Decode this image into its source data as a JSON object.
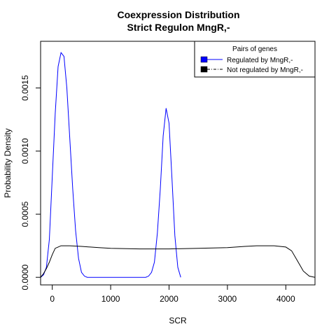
{
  "chart_data": {
    "type": "line",
    "title": "Coexpression Distribution",
    "subtitle": "Strict Regulon MngR,-",
    "xlabel": "SCR",
    "ylabel": "Probability Density",
    "xlim": [
      -200,
      4500
    ],
    "ylim": [
      -6e-05,
      0.00187
    ],
    "x_ticks": [
      0,
      1000,
      2000,
      3000,
      4000
    ],
    "x_tick_labels": [
      "0",
      "1000",
      "2000",
      "3000",
      "4000"
    ],
    "y_ticks": [
      0.0,
      0.0005,
      0.001,
      0.0015
    ],
    "y_tick_labels": [
      "0.0000",
      "0.0005",
      "0.0010",
      "0.0015"
    ],
    "grid": false,
    "legend": {
      "title": "Pairs of genes",
      "position": "top-right",
      "entries": [
        {
          "label": "Regulated by  MngR,-",
          "color": "#0000ff",
          "line": "solid"
        },
        {
          "label": "Not regulated by  MngR,-",
          "color": "#000000",
          "line": "dashed"
        }
      ]
    },
    "series": [
      {
        "name": "Regulated by  MngR,-",
        "color": "#0000ff",
        "x": [
          -200,
          -150,
          -100,
          -50,
          0,
          50,
          100,
          150,
          200,
          250,
          300,
          350,
          400,
          450,
          500,
          550,
          600,
          650,
          700,
          1500,
          1600,
          1650,
          1700,
          1750,
          1800,
          1850,
          1900,
          1950,
          2000,
          2050,
          2100,
          2150,
          2200
        ],
        "y": [
          0.0,
          2e-05,
          8e-05,
          0.0003,
          0.0008,
          0.0013,
          0.00167,
          0.00178,
          0.00175,
          0.0015,
          0.0011,
          0.0007,
          0.00037,
          0.00015,
          4e-05,
          1e-05,
          0.0,
          0.0,
          0.0,
          0.0,
          0.0,
          1e-05,
          4e-05,
          0.00012,
          0.00035,
          0.0007,
          0.00112,
          0.00134,
          0.00122,
          0.00078,
          0.00033,
          8e-05,
          0.0
        ]
      },
      {
        "name": "Not regulated by  MngR,-",
        "color": "#000000",
        "x": [
          -200,
          -150,
          -100,
          -50,
          0,
          50,
          100,
          150,
          200,
          300,
          500,
          800,
          1000,
          1500,
          2000,
          2500,
          3000,
          3300,
          3500,
          3800,
          4000,
          4100,
          4200,
          4300,
          4400,
          4500
        ],
        "y": [
          0.0,
          3e-05,
          7e-05,
          0.00012,
          0.00018,
          0.00023,
          0.00024,
          0.00025,
          0.00025,
          0.00025,
          0.000245,
          0.000235,
          0.00023,
          0.000225,
          0.000225,
          0.00023,
          0.000235,
          0.000245,
          0.00025,
          0.00025,
          0.00024,
          0.00021,
          0.00013,
          5e-05,
          1e-05,
          0.0
        ]
      }
    ]
  }
}
